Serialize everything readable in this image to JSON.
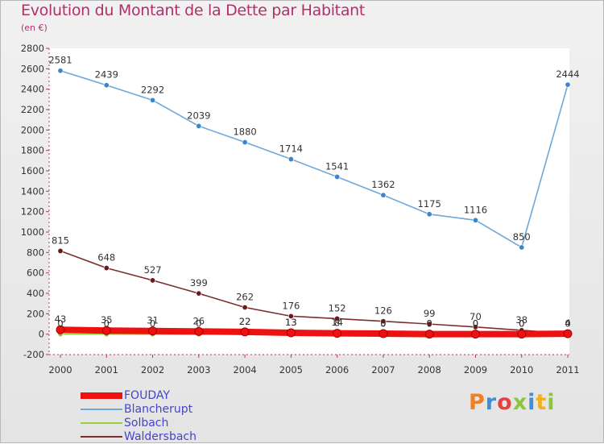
{
  "header": {
    "title": "Evolution du Montant de la Dette par Habitant",
    "subtitle": "(en €)"
  },
  "logo": {
    "text": "Proxiti",
    "colors": [
      "#f08020",
      "#3c8fd8",
      "#e84040",
      "#8cc63f",
      "#3c8fd8",
      "#f0b020",
      "#8cc63f"
    ]
  },
  "chart_data": {
    "type": "line",
    "title": "Evolution du Montant de la Dette par Habitant",
    "subtitle": "(en €)",
    "xlabel": "",
    "ylabel": "",
    "x": [
      2000,
      2001,
      2002,
      2003,
      2004,
      2005,
      2006,
      2007,
      2008,
      2009,
      2010,
      2011
    ],
    "ylim": [
      -200,
      2800
    ],
    "yticks": [
      -200,
      0,
      200,
      400,
      600,
      800,
      1000,
      1200,
      1400,
      1600,
      1800,
      2000,
      2200,
      2400,
      2600,
      2800
    ],
    "grid": false,
    "legend_position": "bottom-left",
    "series": [
      {
        "name": "Blancherupt",
        "color": "#6fa8d8",
        "marker": "#3a86c8",
        "values": [
          2581,
          2439,
          2292,
          2039,
          1880,
          1714,
          1541,
          1362,
          1175,
          1116,
          850,
          2444
        ],
        "labels": [
          "2581",
          "2439",
          "2292",
          "2039",
          "1880",
          "1714",
          "1541",
          "1362",
          "1175",
          "1116",
          "850",
          "2444"
        ]
      },
      {
        "name": "Waldersbach",
        "color": "#7a2e2e",
        "marker": "#6a1a1a",
        "values": [
          815,
          648,
          527,
          399,
          262,
          176,
          152,
          126,
          99,
          70,
          38,
          4
        ],
        "labels": [
          "815",
          "648",
          "527",
          "399",
          "262",
          "176",
          "152",
          "126",
          "99",
          "70",
          "38",
          "4"
        ]
      },
      {
        "name": "Solbach",
        "color": "#9ad040",
        "marker": "#8cc63f",
        "values": [
          0,
          0,
          0,
          0,
          22,
          13,
          14,
          0,
          0,
          0,
          0,
          0
        ],
        "labels": [
          "0",
          "0",
          "0",
          "0",
          "22",
          "13",
          "14",
          "0",
          "0",
          "0",
          "0",
          "0"
        ]
      },
      {
        "name": "FOUDAY",
        "color": "#ee1111",
        "marker": "#ee1111",
        "values": [
          43,
          35,
          31,
          26,
          22,
          13,
          8,
          5,
          0,
          0,
          0,
          4
        ],
        "labels": [
          "43",
          "35",
          "31",
          "26",
          "22",
          "13",
          "8",
          "5",
          "0",
          "0",
          "0",
          "4"
        ]
      }
    ],
    "legend": [
      {
        "name": "FOUDAY",
        "color": "#ee1111",
        "thick": true
      },
      {
        "name": "Blancherupt",
        "color": "#6fa8d8",
        "thick": false
      },
      {
        "name": "Solbach",
        "color": "#9ad040",
        "thick": false
      },
      {
        "name": "Waldersbach",
        "color": "#7a2e2e",
        "thick": false
      }
    ]
  }
}
